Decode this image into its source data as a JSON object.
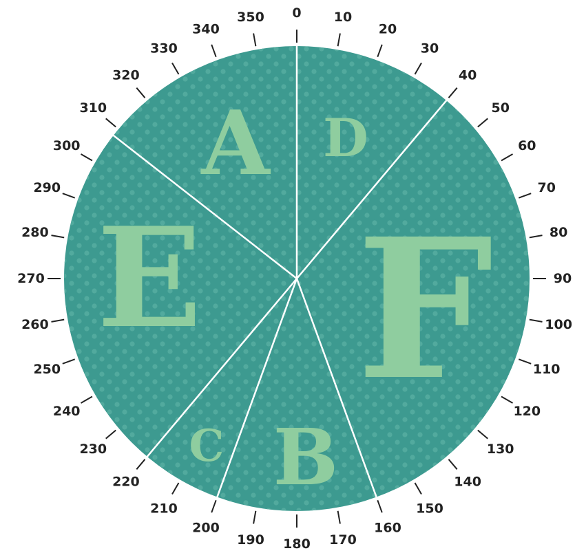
{
  "colors": {
    "disc": "#3d9a90",
    "dots": "#52aa9e",
    "letters": "#8fcd9f",
    "divider": "#ffffff",
    "ticks": "#222222"
  },
  "dial": {
    "tick_step_degrees": 10,
    "tick_labels": [
      "0",
      "10",
      "20",
      "30",
      "40",
      "50",
      "60",
      "70",
      "80",
      "90",
      "100",
      "110",
      "120",
      "130",
      "140",
      "150",
      "160",
      "170",
      "180",
      "190",
      "200",
      "210",
      "220",
      "230",
      "240",
      "250",
      "260",
      "270",
      "280",
      "290",
      "300",
      "310",
      "320",
      "330",
      "340",
      "350"
    ]
  },
  "sectors": [
    {
      "label": "D",
      "from_deg": 0,
      "to_deg": 40
    },
    {
      "label": "F",
      "from_deg": 40,
      "to_deg": 160
    },
    {
      "label": "B",
      "from_deg": 160,
      "to_deg": 200
    },
    {
      "label": "C",
      "from_deg": 200,
      "to_deg": 220
    },
    {
      "label": "E",
      "from_deg": 220,
      "to_deg": 308
    },
    {
      "label": "A",
      "from_deg": 308,
      "to_deg": 360
    }
  ]
}
